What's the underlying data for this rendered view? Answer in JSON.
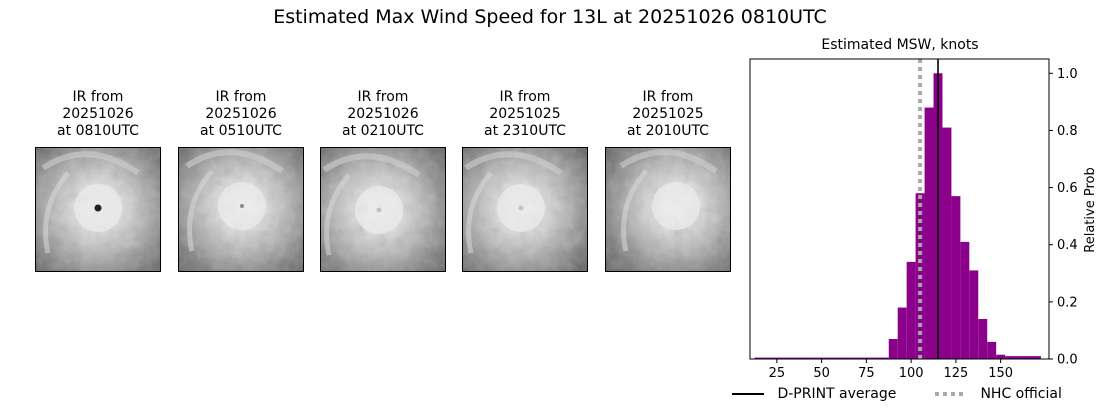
{
  "title": "Estimated Max Wind Speed for 13L at 20251026 0810UTC",
  "ir_panels": [
    {
      "label": "IR from\n20251026\nat 0810UTC",
      "eye": "clear"
    },
    {
      "label": "IR from\n20251026\nat 0510UTC",
      "eye": "small"
    },
    {
      "label": "IR from\n20251026\nat 0210UTC",
      "eye": "faint"
    },
    {
      "label": "IR from\n20251025\nat 2310UTC",
      "eye": "faint"
    },
    {
      "label": "IR from\n20251025\nat 2010UTC",
      "eye": "none"
    }
  ],
  "chart_data": {
    "type": "bar",
    "title": "Estimated MSW, knots",
    "ylabel": "Relative Prob",
    "xlim": [
      10,
      177
    ],
    "ylim": [
      0,
      1.05
    ],
    "xticks": [
      25,
      50,
      75,
      100,
      125,
      150
    ],
    "yticks": [
      0.0,
      0.2,
      0.4,
      0.6,
      0.8,
      1.0
    ],
    "bin_width": 5,
    "bins": [
      {
        "x": 15,
        "value": 0.005
      },
      {
        "x": 20,
        "value": 0.005
      },
      {
        "x": 25,
        "value": 0.005
      },
      {
        "x": 30,
        "value": 0.005
      },
      {
        "x": 35,
        "value": 0.005
      },
      {
        "x": 40,
        "value": 0.005
      },
      {
        "x": 45,
        "value": 0.005
      },
      {
        "x": 50,
        "value": 0.005
      },
      {
        "x": 55,
        "value": 0.005
      },
      {
        "x": 60,
        "value": 0.005
      },
      {
        "x": 65,
        "value": 0.005
      },
      {
        "x": 70,
        "value": 0.005
      },
      {
        "x": 75,
        "value": 0.005
      },
      {
        "x": 80,
        "value": 0.005
      },
      {
        "x": 85,
        "value": 0.005
      },
      {
        "x": 90,
        "value": 0.07
      },
      {
        "x": 95,
        "value": 0.18
      },
      {
        "x": 100,
        "value": 0.34
      },
      {
        "x": 105,
        "value": 0.58
      },
      {
        "x": 110,
        "value": 0.88
      },
      {
        "x": 115,
        "value": 1.0
      },
      {
        "x": 120,
        "value": 0.81
      },
      {
        "x": 125,
        "value": 0.57
      },
      {
        "x": 130,
        "value": 0.41
      },
      {
        "x": 135,
        "value": 0.31
      },
      {
        "x": 140,
        "value": 0.14
      },
      {
        "x": 145,
        "value": 0.06
      },
      {
        "x": 150,
        "value": 0.015
      },
      {
        "x": 155,
        "value": 0.01
      },
      {
        "x": 160,
        "value": 0.01
      },
      {
        "x": 165,
        "value": 0.01
      },
      {
        "x": 170,
        "value": 0.01
      }
    ],
    "bar_color": "#8b008b",
    "dprint_average": 115,
    "nhc_official": 105,
    "dprint_color": "#000000",
    "nhc_color": "#a9a9a9",
    "legend": [
      {
        "label": "D-PRINT average",
        "style": "solid"
      },
      {
        "label": "NHC official",
        "style": "dotted"
      }
    ],
    "legend_placement": "bottom"
  }
}
